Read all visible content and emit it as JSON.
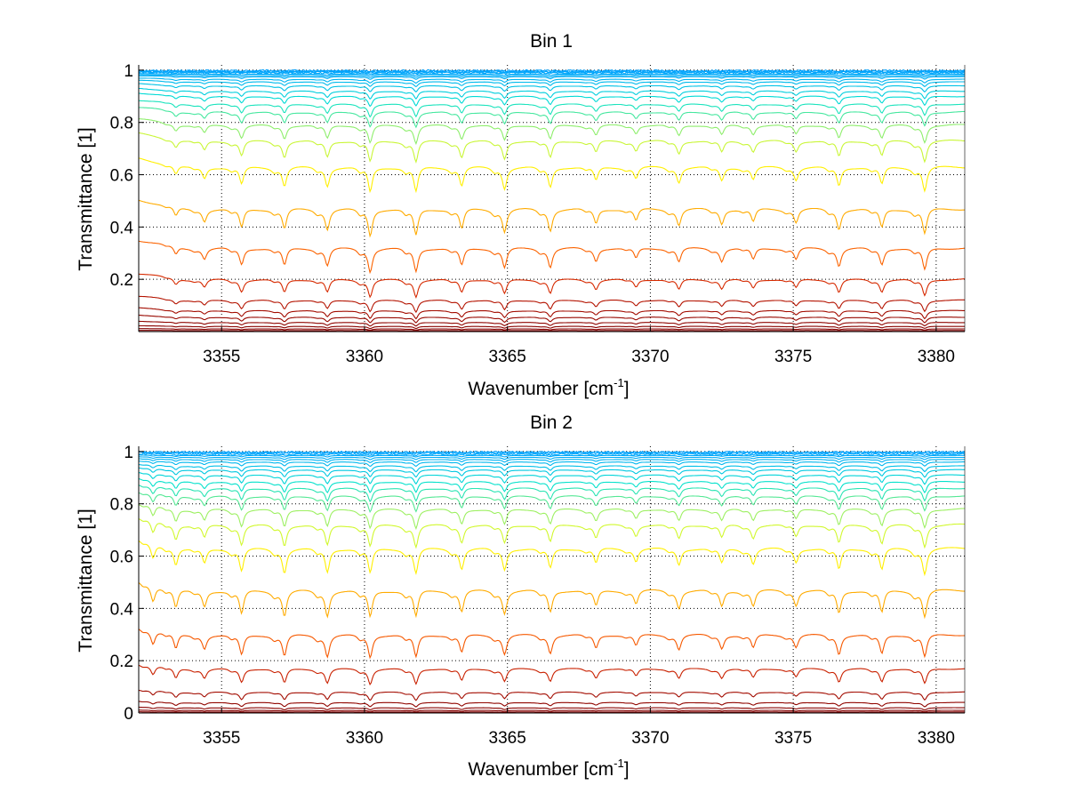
{
  "colors": {
    "background": "#ffffff",
    "axes": "#000000",
    "grid": "#000000",
    "colormap_stops": [
      "#00a0ff",
      "#00e0d0",
      "#a0f060",
      "#ffff00",
      "#ffd000",
      "#ffa000",
      "#ff6a00",
      "#e03000",
      "#b01000",
      "#800000"
    ]
  },
  "chart_data": [
    {
      "type": "line",
      "title": "Bin 1",
      "xlabel": "Wavenumber [cm",
      "xlabel_sup": "-1",
      "xlabel_close": "]",
      "ylabel": "Transmittance [1]",
      "xlim": [
        3352.1,
        3381.0
      ],
      "ylim": [
        0.0,
        1.02
      ],
      "xticks": [
        3355,
        3360,
        3365,
        3370,
        3375,
        3380
      ],
      "xtick_labels": [
        "3355",
        "3360",
        "3365",
        "3370",
        "3375",
        "3380"
      ],
      "yticks": [
        0.2,
        0.4,
        0.6,
        0.8,
        1.0
      ],
      "ytick_labels": [
        "0.2",
        "0.4",
        "0.6",
        "0.8",
        "1"
      ],
      "grid": true,
      "series_description": "family of transmittance spectra, continuum levels below",
      "continuum_levels": [
        0.998,
        0.995,
        0.993,
        0.99,
        0.985,
        0.98,
        0.975,
        0.965,
        0.955,
        0.94,
        0.92,
        0.9,
        0.87,
        0.84,
        0.79,
        0.73,
        0.63,
        0.47,
        0.32,
        0.2,
        0.12,
        0.08,
        0.055,
        0.035,
        0.02,
        0.01,
        0.004
      ],
      "absorption_lines_cm-1": [
        3353.4,
        3354.4,
        3355.7,
        3357.2,
        3358.7,
        3360.2,
        3361.8,
        3363.4,
        3364.9,
        3366.5,
        3368.1,
        3369.5,
        3371.0,
        3372.5,
        3373.6,
        3375.1,
        3376.6,
        3378.1,
        3379.6
      ],
      "line_strengths": [
        0.35,
        0.45,
        0.7,
        0.75,
        0.75,
        1.0,
        1.0,
        0.75,
        0.85,
        0.8,
        0.55,
        0.45,
        0.6,
        0.55,
        0.5,
        0.5,
        0.75,
        0.7,
        0.95
      ]
    },
    {
      "type": "line",
      "title": "Bin 2",
      "xlabel": "Wavenumber [cm",
      "xlabel_sup": "-1",
      "xlabel_close": "]",
      "ylabel": "Transmittance [1]",
      "xlim": [
        3352.1,
        3381.0
      ],
      "ylim": [
        0.0,
        1.02
      ],
      "xticks": [
        3355,
        3360,
        3365,
        3370,
        3375,
        3380
      ],
      "xtick_labels": [
        "3355",
        "3360",
        "3365",
        "3370",
        "3375",
        "3380"
      ],
      "yticks": [
        0.0,
        0.2,
        0.4,
        0.6,
        0.8,
        1.0
      ],
      "ytick_labels": [
        "0",
        "0.2",
        "0.4",
        "0.6",
        "0.8",
        "1"
      ],
      "grid": true,
      "series_description": "family of transmittance spectra, continuum levels below",
      "continuum_levels": [
        0.998,
        0.995,
        0.99,
        0.985,
        0.978,
        0.97,
        0.96,
        0.945,
        0.93,
        0.91,
        0.885,
        0.86,
        0.83,
        0.78,
        0.72,
        0.63,
        0.47,
        0.3,
        0.17,
        0.08,
        0.04,
        0.02,
        0.01,
        0.004
      ],
      "absorption_lines_cm-1": [
        3352.6,
        3353.4,
        3354.4,
        3355.7,
        3357.2,
        3358.7,
        3360.2,
        3361.8,
        3363.4,
        3364.9,
        3366.5,
        3368.1,
        3369.5,
        3371.0,
        3372.5,
        3373.6,
        3375.1,
        3376.6,
        3378.1,
        3379.6
      ],
      "line_strengths": [
        0.6,
        0.7,
        0.6,
        0.9,
        0.95,
        0.95,
        1.0,
        1.0,
        0.8,
        0.85,
        0.8,
        0.6,
        0.5,
        0.65,
        0.6,
        0.6,
        0.55,
        0.85,
        0.85,
        1.0
      ]
    }
  ]
}
